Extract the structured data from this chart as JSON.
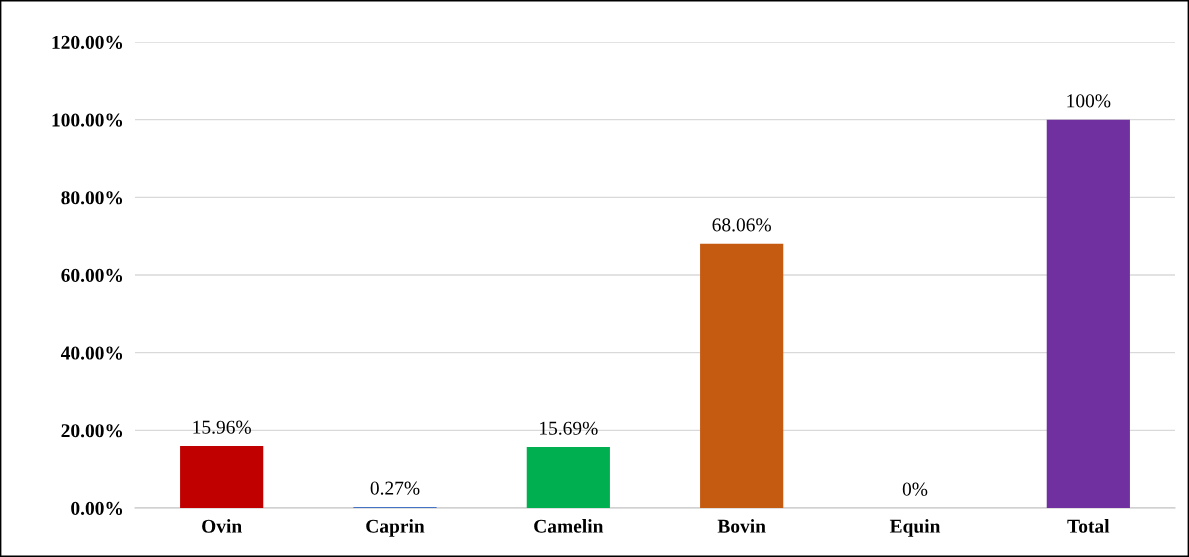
{
  "chart_data": {
    "type": "bar",
    "categories": [
      "Ovin",
      "Caprin",
      "Camelin",
      "Bovin",
      "Equin",
      "Total"
    ],
    "values": [
      15.96,
      0.27,
      15.69,
      68.06,
      0,
      100
    ],
    "colors": [
      "#c00000",
      "#4472c4",
      "#00b050",
      "#c55a11",
      "#d9d9d9",
      "#7030a0"
    ],
    "value_labels": [
      "15.96%",
      "0.27%",
      "15.69%",
      "68.06%",
      "0%",
      "100%"
    ],
    "ylim": [
      0,
      120
    ],
    "yticks": [
      {
        "value": 0,
        "label": "0.00%"
      },
      {
        "value": 20,
        "label": "20.00%"
      },
      {
        "value": 40,
        "label": "40.00%"
      },
      {
        "value": 60,
        "label": "60.00%"
      },
      {
        "value": 80,
        "label": "80.00%"
      },
      {
        "value": 100,
        "label": "100.00%"
      },
      {
        "value": 120,
        "label": "120.00%"
      }
    ],
    "grid": "y",
    "legend": false
  }
}
